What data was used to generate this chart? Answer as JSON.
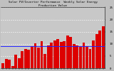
{
  "title": "Solar PV/Inverter Performance  Weekly Solar Energy Production Value",
  "bar_values": [
    2.1,
    3.8,
    3.5,
    1.0,
    5.5,
    4.2,
    7.0,
    8.0,
    7.5,
    9.0,
    10.2,
    8.5,
    11.0,
    6.0,
    9.5,
    10.5,
    11.5,
    12.0,
    10.8,
    11.2,
    13.5,
    12.8,
    10.0,
    9.5,
    8.8,
    10.5,
    9.2,
    7.8,
    11.5,
    14.0,
    15.5,
    17.2
  ],
  "bar_color": "#dd0000",
  "avg_line_value": 9.0,
  "avg_line_color": "#2222ff",
  "plot_bg_color": "#c8c8c8",
  "fig_bg_color": "#c0c0c0",
  "grid_color": "#ffffff",
  "ylim": [
    0,
    25
  ],
  "ytick_vals": [
    0,
    5,
    10,
    15,
    20,
    25
  ],
  "ytick_labels": [
    "0",
    "5",
    "10",
    "15",
    "20",
    "25"
  ],
  "ylabel_fontsize": 3.0,
  "title_fontsize": 3.0,
  "bar_width": 0.85,
  "avg_linewidth": 0.7
}
